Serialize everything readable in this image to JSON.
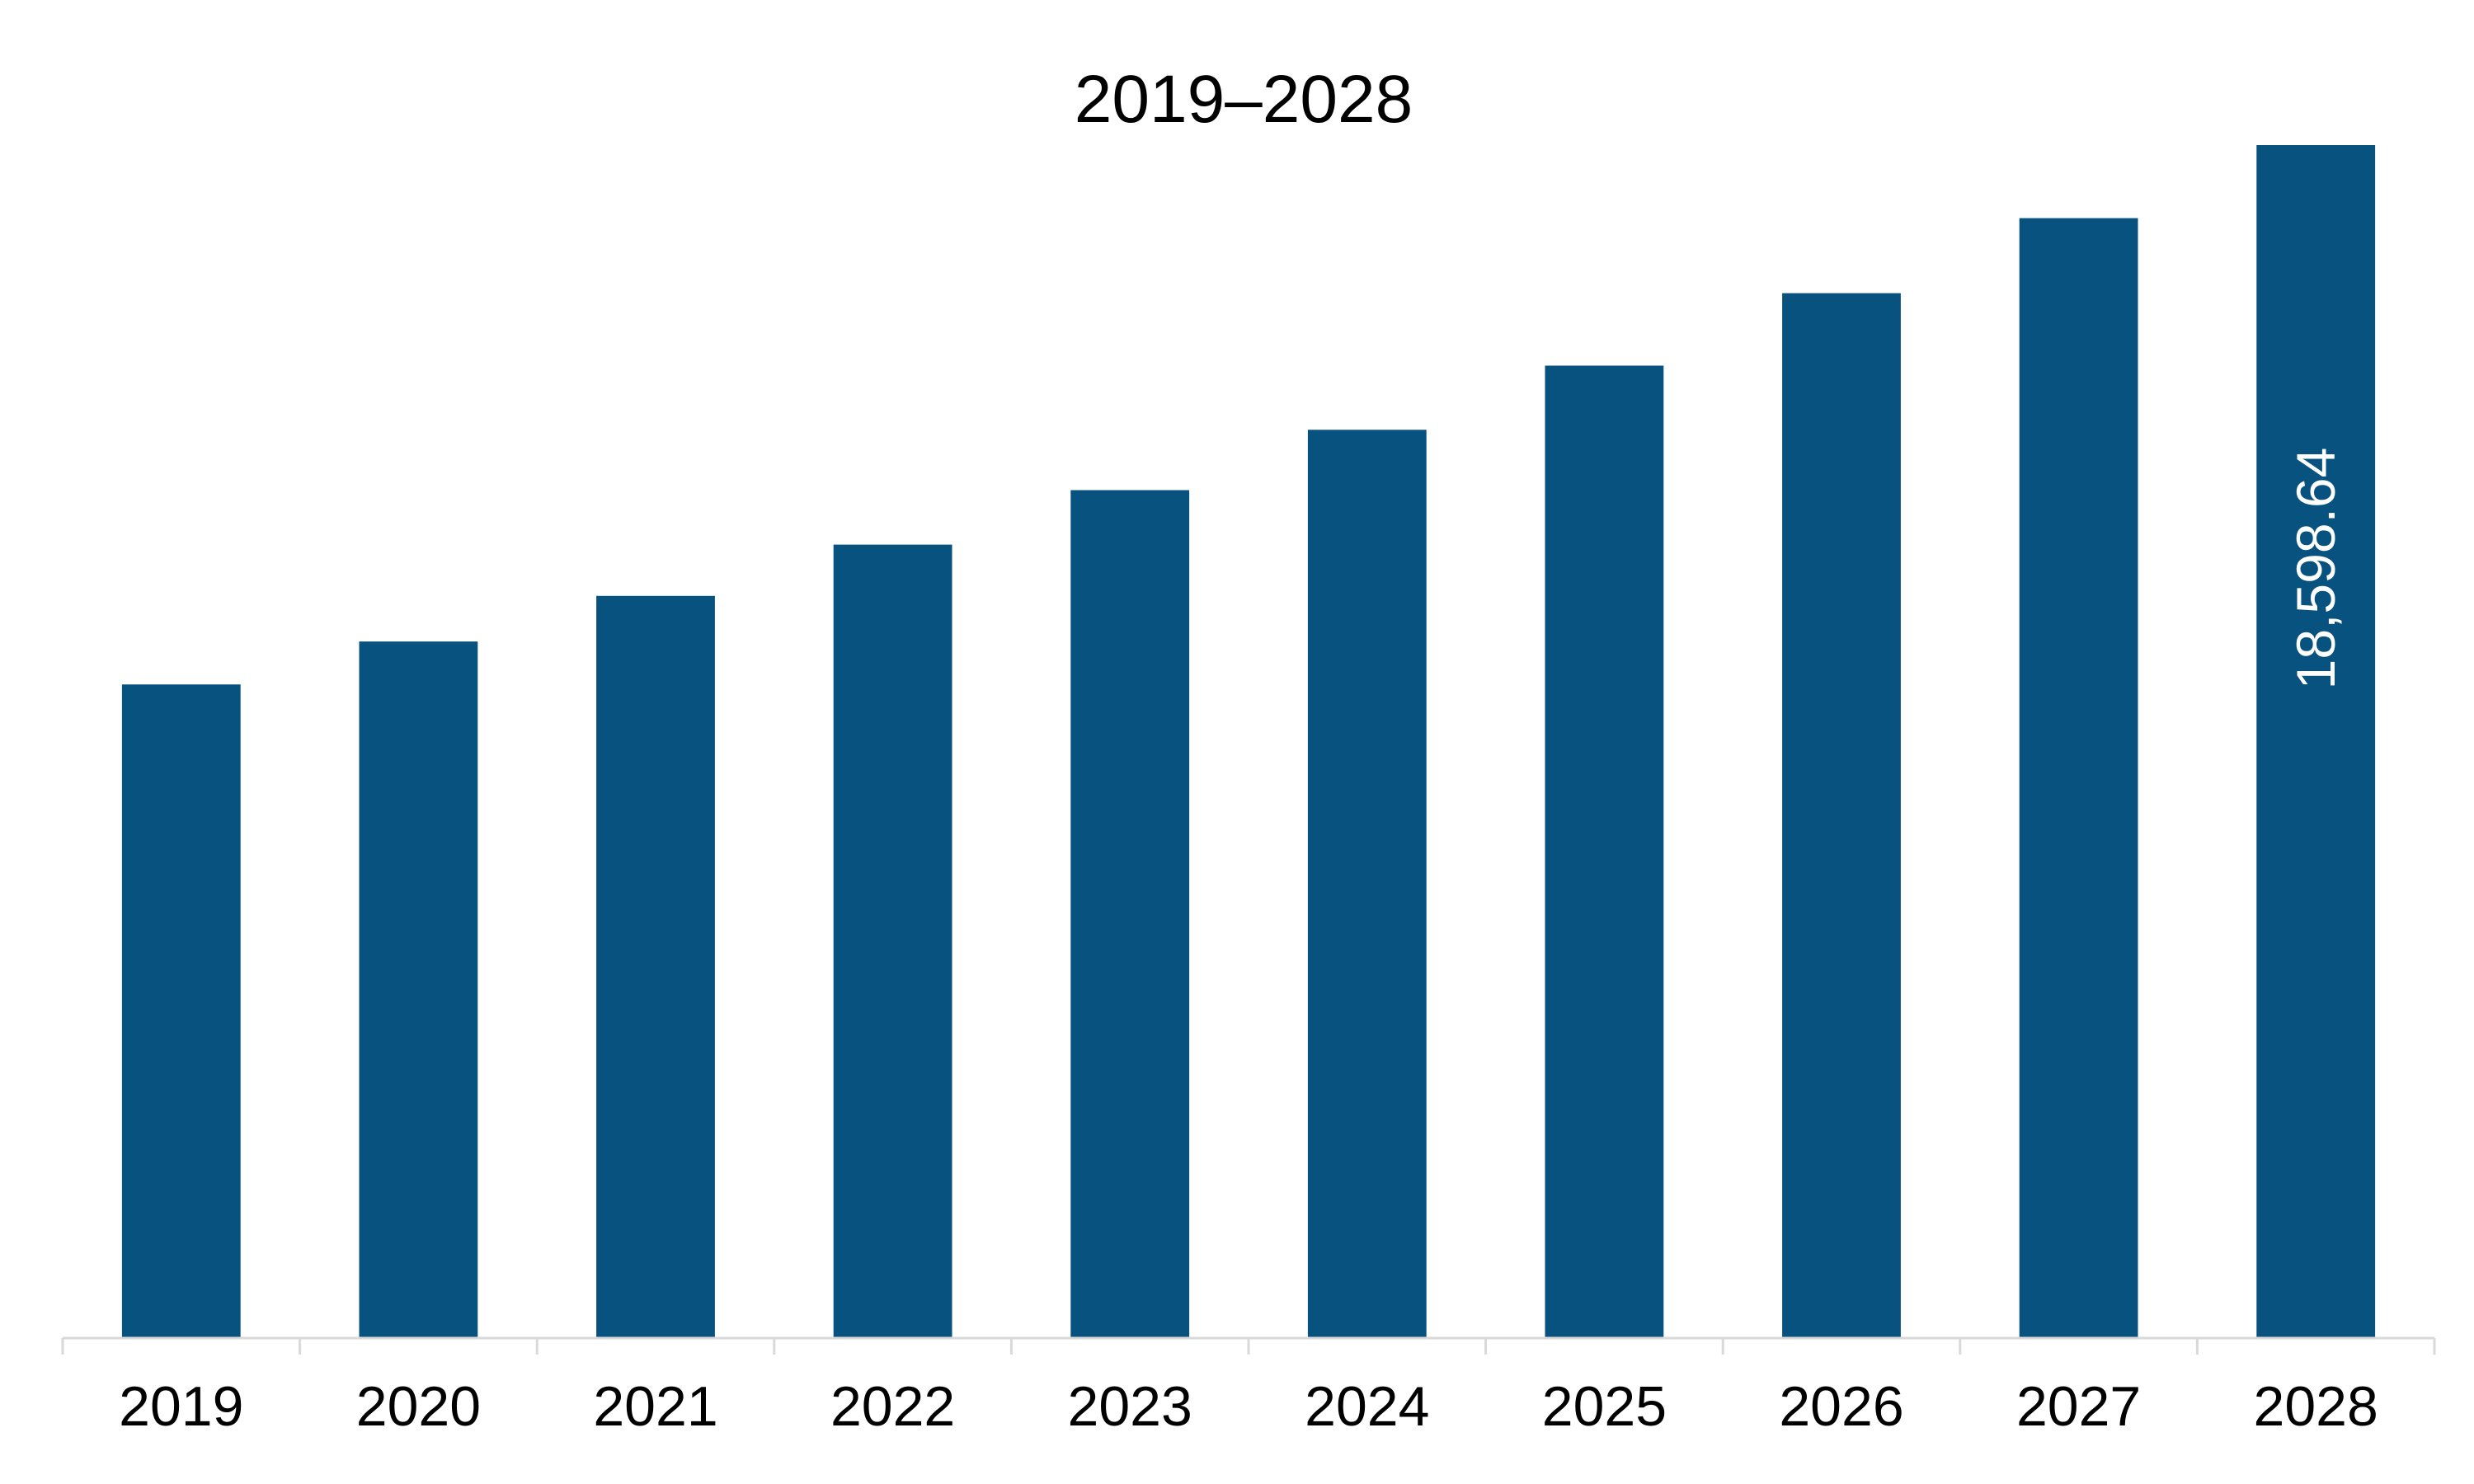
{
  "chart_data": {
    "type": "bar",
    "title": "2019–2028",
    "xlabel": "",
    "ylabel": "",
    "categories": [
      "2019",
      "2020",
      "2021",
      "2022",
      "2023",
      "2024",
      "2025",
      "2026",
      "2027",
      "2028"
    ],
    "values": [
      10190,
      10860,
      11570,
      12370,
      13220,
      14160,
      15160,
      16290,
      17460,
      18598.64
    ],
    "data_labels": [
      "",
      "",
      "",
      "",
      "",
      "",
      "",
      "",
      "",
      "18,598.64"
    ],
    "ylim": [
      0,
      18598.64
    ],
    "grid": false,
    "legend": "none",
    "bar_color": "#08527f",
    "axis_color": "#d9d9d9"
  }
}
